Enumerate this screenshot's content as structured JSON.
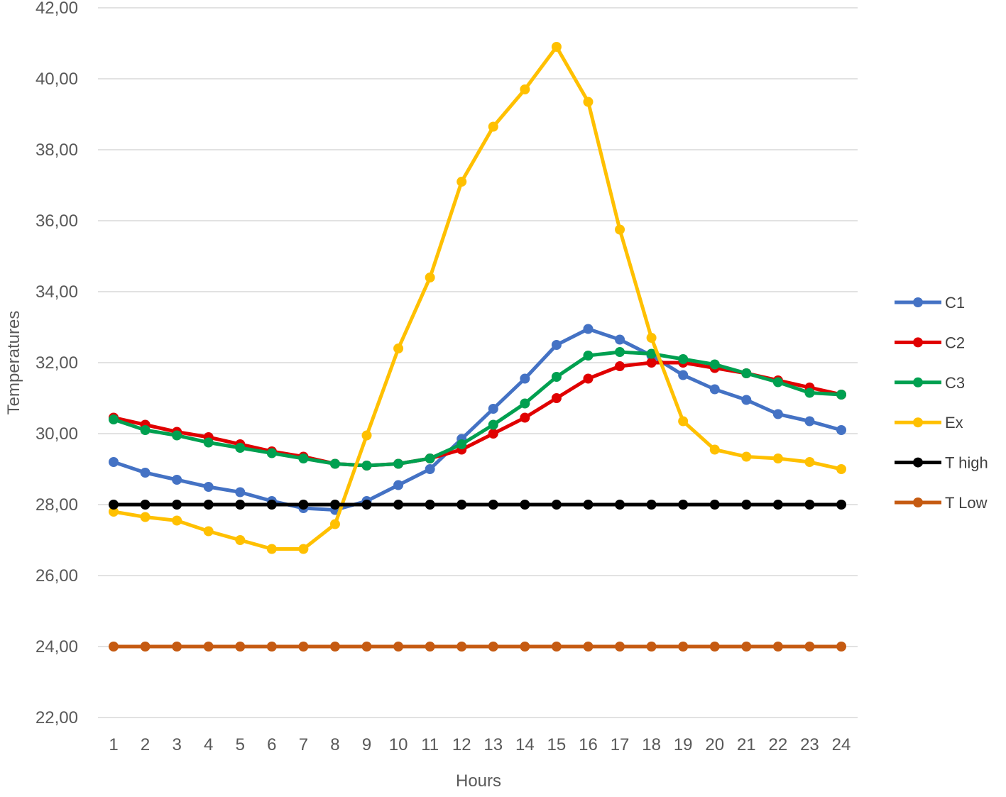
{
  "chart_data": {
    "type": "line",
    "title": "",
    "xlabel": "Hours",
    "ylabel": "Temperatures",
    "x": [
      1,
      2,
      3,
      4,
      5,
      6,
      7,
      8,
      9,
      10,
      11,
      12,
      13,
      14,
      15,
      16,
      17,
      18,
      19,
      20,
      21,
      22,
      23,
      24
    ],
    "y_ticks": [
      "22,00",
      "24,00",
      "26,00",
      "28,00",
      "30,00",
      "32,00",
      "34,00",
      "36,00",
      "38,00",
      "40,00",
      "42,00"
    ],
    "ylim": [
      22,
      42
    ],
    "grid": "horizontal",
    "legend_position": "right",
    "series": [
      {
        "name": "C1",
        "color": "#4472c4",
        "values": [
          29.2,
          28.9,
          28.7,
          28.5,
          28.35,
          28.1,
          27.9,
          27.85,
          28.1,
          28.55,
          29.0,
          29.85,
          30.7,
          31.55,
          32.5,
          32.95,
          32.65,
          32.2,
          31.65,
          31.25,
          30.95,
          30.55,
          30.35,
          30.1
        ]
      },
      {
        "name": "C2",
        "color": "#e00000",
        "values": [
          30.45,
          30.25,
          30.05,
          29.9,
          29.7,
          29.5,
          29.35,
          29.15,
          29.1,
          29.15,
          29.3,
          29.55,
          30.0,
          30.45,
          31.0,
          31.55,
          31.9,
          32.0,
          32.0,
          31.85,
          31.7,
          31.5,
          31.3,
          31.1
        ]
      },
      {
        "name": "C3",
        "color": "#00a050",
        "values": [
          30.4,
          30.1,
          29.95,
          29.75,
          29.6,
          29.45,
          29.3,
          29.15,
          29.1,
          29.15,
          29.3,
          29.7,
          30.25,
          30.85,
          31.6,
          32.2,
          32.3,
          32.25,
          32.1,
          31.95,
          31.7,
          31.45,
          31.15,
          31.1
        ]
      },
      {
        "name": "Ex",
        "color": "#ffc000",
        "values": [
          27.8,
          27.65,
          27.55,
          27.25,
          27.0,
          26.75,
          26.75,
          27.45,
          29.95,
          32.4,
          34.4,
          37.1,
          38.65,
          39.7,
          40.9,
          39.35,
          35.75,
          32.7,
          30.35,
          29.55,
          29.35,
          29.3,
          29.2,
          29.0
        ]
      },
      {
        "name": "T high",
        "color": "#000000",
        "values": [
          28,
          28,
          28,
          28,
          28,
          28,
          28,
          28,
          28,
          28,
          28,
          28,
          28,
          28,
          28,
          28,
          28,
          28,
          28,
          28,
          28,
          28,
          28,
          28
        ]
      },
      {
        "name": "T Low",
        "color": "#c55a11",
        "values": [
          24,
          24,
          24,
          24,
          24,
          24,
          24,
          24,
          24,
          24,
          24,
          24,
          24,
          24,
          24,
          24,
          24,
          24,
          24,
          24,
          24,
          24,
          24,
          24
        ]
      }
    ]
  }
}
